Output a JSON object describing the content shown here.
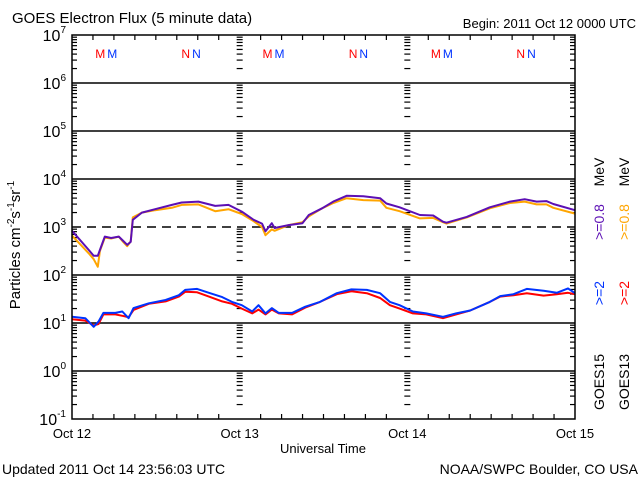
{
  "header": {
    "title": "GOES Electron Flux (5 minute data)",
    "begin": "Begin: 2011 Oct 12 0000 UTC"
  },
  "footer": {
    "updated": "Updated 2011 Oct 14 23:56:03 UTC",
    "credit": "NOAA/SWPC Boulder, CO USA"
  },
  "colors": {
    "goes15_08": "#5c0fb4",
    "goes13_08": "#ffa500",
    "goes15_2": "#0033ff",
    "goes13_2": "#ff0000"
  },
  "legend": {
    "col1": {
      "sat": "GOES15",
      "e2": ">=2",
      "e08": ">=0.8",
      "unit": "MeV"
    },
    "col2": {
      "sat": "GOES13",
      "e2": ">=2",
      "e08": ">=0.8",
      "unit": "MeV"
    }
  },
  "markers": [
    {
      "label": "M",
      "t": 4.4,
      "color": "#ff0000"
    },
    {
      "label": "M",
      "t": 5.4,
      "color": "#0033ff"
    },
    {
      "label": "N",
      "t": 16.6,
      "color": "#ff0000"
    },
    {
      "label": "N",
      "t": 17.5,
      "color": "#0033ff"
    },
    {
      "label": "M",
      "t": 28.4,
      "color": "#ff0000"
    },
    {
      "label": "M",
      "t": 29.3,
      "color": "#0033ff"
    },
    {
      "label": "N",
      "t": 40.6,
      "color": "#ff0000"
    },
    {
      "label": "N",
      "t": 41.4,
      "color": "#0033ff"
    },
    {
      "label": "M",
      "t": 52.5,
      "color": "#ff0000"
    },
    {
      "label": "M",
      "t": 53.4,
      "color": "#0033ff"
    },
    {
      "label": "N",
      "t": 64.6,
      "color": "#ff0000"
    },
    {
      "label": "N",
      "t": 65.4,
      "color": "#0033ff"
    }
  ],
  "chart_data": {
    "type": "line",
    "title": "GOES Electron Flux (5 minute data)",
    "xlabel": "Universal Time",
    "ylabel": {
      "base": "Particles cm",
      "e1": "-2",
      "mid1": "s",
      "e2": "-1",
      "mid2": "sr",
      "e3": "-1"
    },
    "x_unit": "hours since 2011 Oct 12 00:00 UTC",
    "xlim": [
      0,
      72
    ],
    "x_ticks": [
      {
        "t": 0,
        "label": "Oct 12"
      },
      {
        "t": 24,
        "label": "Oct 13"
      },
      {
        "t": 48,
        "label": "Oct 14"
      },
      {
        "t": 72,
        "label": "Oct 15"
      }
    ],
    "yscale": "log",
    "ylim_log10": [
      -1,
      7
    ],
    "y_ticks": [
      {
        "base": "10",
        "exp": "7",
        "e": 7
      },
      {
        "base": "10",
        "exp": "6",
        "e": 6
      },
      {
        "base": "10",
        "exp": "5",
        "e": 5
      },
      {
        "base": "10",
        "exp": "4",
        "e": 4
      },
      {
        "base": "10",
        "exp": "3",
        "e": 3
      },
      {
        "base": "10",
        "exp": "2",
        "e": 2
      },
      {
        "base": "10",
        "exp": "1",
        "e": 1
      },
      {
        "base": "10",
        "exp": "0",
        "e": 0
      },
      {
        "base": "10",
        "exp": "-1",
        "e": -1
      }
    ],
    "threshold_log10": 3,
    "series": [
      {
        "name": "GOES13 >=0.8 MeV",
        "color": "#ffa500",
        "t": [
          0,
          2.4,
          3.1,
          3.7,
          4.0,
          4.7,
          5.6,
          6.7,
          7.2,
          7.9,
          8.4,
          8.7,
          10,
          11.9,
          14.3,
          15.7,
          18.1,
          20.5,
          22.4,
          24.3,
          26,
          27.2,
          27.7,
          28.6,
          29,
          31,
          33,
          33.9,
          35.8,
          37.4,
          39.3,
          41.7,
          44.1,
          45,
          46.9,
          49.8,
          51.7,
          53.1,
          53.6,
          56.5,
          59.8,
          62.7,
          64.8,
          66.5,
          67.9,
          68.9,
          72
        ],
        "log10": [
          2.82,
          2.45,
          2.33,
          2.17,
          2.5,
          2.78,
          2.76,
          2.8,
          2.71,
          2.6,
          2.7,
          3.2,
          3.3,
          3.35,
          3.4,
          3.46,
          3.47,
          3.33,
          3.37,
          3.27,
          3.12,
          3.0,
          2.83,
          2.95,
          2.92,
          3.04,
          3.1,
          3.22,
          3.39,
          3.5,
          3.6,
          3.56,
          3.55,
          3.4,
          3.33,
          3.18,
          3.19,
          3.1,
          3.07,
          3.2,
          3.39,
          3.5,
          3.53,
          3.47,
          3.47,
          3.4,
          3.28
        ]
      },
      {
        "name": "GOES15 >=0.8 MeV",
        "color": "#5c0fb4",
        "t": [
          0,
          2.4,
          3.1,
          3.7,
          4.0,
          4.7,
          5.6,
          6.7,
          7.2,
          7.9,
          8.4,
          8.7,
          10,
          11.9,
          14.3,
          15.7,
          18.1,
          20.5,
          22.4,
          24.3,
          26,
          27.2,
          27.7,
          28.6,
          29,
          31,
          33,
          33.9,
          35.8,
          37.4,
          39.3,
          41.7,
          44.1,
          45,
          46.9,
          49.8,
          51.7,
          53.1,
          53.6,
          56.5,
          59.8,
          62.7,
          64.8,
          66.5,
          67.9,
          68.9,
          72
        ],
        "log10": [
          2.92,
          2.52,
          2.4,
          2.4,
          2.52,
          2.8,
          2.77,
          2.8,
          2.73,
          2.63,
          2.69,
          3.15,
          3.3,
          3.37,
          3.46,
          3.51,
          3.53,
          3.44,
          3.46,
          3.32,
          3.15,
          3.07,
          2.91,
          3.08,
          2.98,
          3.04,
          3.08,
          3.25,
          3.39,
          3.53,
          3.65,
          3.64,
          3.6,
          3.49,
          3.41,
          3.25,
          3.24,
          3.11,
          3.09,
          3.21,
          3.41,
          3.53,
          3.58,
          3.53,
          3.54,
          3.48,
          3.35
        ]
      },
      {
        "name": "GOES13 >=2 MeV",
        "color": "#ff0000",
        "t": [
          0,
          1.9,
          3.1,
          3.8,
          4.5,
          6.2,
          7.2,
          8.1,
          8.8,
          11,
          13.4,
          15.3,
          16.2,
          17.9,
          19.6,
          21.5,
          22.9,
          24.3,
          25.8,
          26.7,
          27.7,
          28.6,
          29.6,
          31.5,
          33.4,
          35.5,
          37.9,
          40,
          42.2,
          44.1,
          45.5,
          46.9,
          48.8,
          50.7,
          53.1,
          55,
          57,
          59.8,
          61.3,
          63.2,
          65.1,
          67.5,
          69.4,
          71,
          72
        ],
        "log10": [
          1.08,
          1.05,
          0.95,
          0.98,
          1.18,
          1.18,
          1.15,
          1.12,
          1.27,
          1.4,
          1.45,
          1.55,
          1.65,
          1.64,
          1.55,
          1.45,
          1.4,
          1.3,
          1.2,
          1.28,
          1.18,
          1.28,
          1.2,
          1.18,
          1.32,
          1.44,
          1.6,
          1.66,
          1.62,
          1.52,
          1.37,
          1.3,
          1.2,
          1.18,
          1.1,
          1.18,
          1.26,
          1.44,
          1.55,
          1.58,
          1.62,
          1.57,
          1.6,
          1.63,
          1.6
        ]
      },
      {
        "name": "GOES15 >=2 MeV",
        "color": "#0033ff",
        "t": [
          0,
          1.9,
          3.1,
          3.8,
          4.5,
          6.2,
          7.2,
          8.1,
          8.8,
          11,
          13.4,
          15.3,
          16.2,
          17.9,
          19.6,
          21.5,
          22.9,
          24.3,
          25.8,
          26.7,
          27.7,
          28.6,
          29.6,
          31.5,
          33.4,
          35.5,
          37.9,
          40,
          42.2,
          44.1,
          45.5,
          46.9,
          48.8,
          50.7,
          53.1,
          55,
          57,
          59.8,
          61.3,
          63.2,
          65.1,
          67.5,
          69.4,
          71,
          72
        ],
        "log10": [
          1.13,
          1.1,
          0.92,
          1.03,
          1.21,
          1.21,
          1.24,
          1.1,
          1.31,
          1.41,
          1.48,
          1.58,
          1.69,
          1.71,
          1.63,
          1.54,
          1.44,
          1.37,
          1.24,
          1.37,
          1.2,
          1.31,
          1.21,
          1.21,
          1.34,
          1.44,
          1.62,
          1.7,
          1.69,
          1.62,
          1.44,
          1.37,
          1.24,
          1.2,
          1.13,
          1.2,
          1.26,
          1.44,
          1.56,
          1.6,
          1.71,
          1.67,
          1.63,
          1.72,
          1.62
        ]
      }
    ]
  }
}
